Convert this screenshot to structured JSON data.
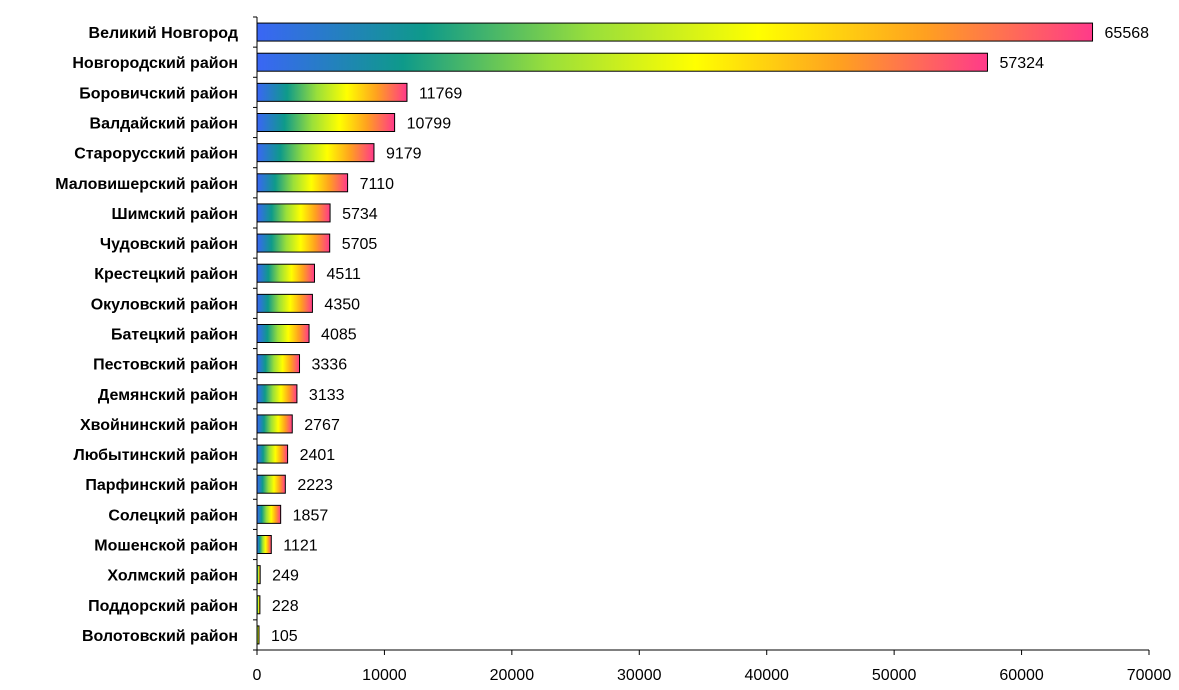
{
  "chart_data": {
    "type": "bar",
    "orientation": "horizontal",
    "categories": [
      "Великий Новгород",
      "Новгородский район",
      "Боровичский район",
      "Валдайский район",
      "Старорусский район",
      "Маловишерский район",
      "Шимский район",
      "Чудовский район",
      "Крестецкий район",
      "Окуловский район",
      "Батецкий район",
      "Пестовский район",
      "Демянский район",
      "Хвойнинский район",
      "Любытинский район",
      "Парфинский район",
      "Солецкий район",
      "Мошенской район",
      "Холмский район",
      "Поддорский район",
      "Волотовский район"
    ],
    "values": [
      65568,
      57324,
      11769,
      10799,
      9179,
      7110,
      5734,
      5705,
      4511,
      4350,
      4085,
      3336,
      3133,
      2767,
      2401,
      2223,
      1857,
      1121,
      249,
      228,
      105
    ],
    "xlim": [
      0,
      70000
    ],
    "xticks": [
      0,
      10000,
      20000,
      30000,
      40000,
      50000,
      60000,
      70000
    ],
    "grid": false,
    "legend": "none",
    "bar_gradient": [
      "#3a66f5",
      "#0e9a8a",
      "#9adf3a",
      "#ffff00",
      "#ffa020",
      "#ff3a8a"
    ]
  }
}
